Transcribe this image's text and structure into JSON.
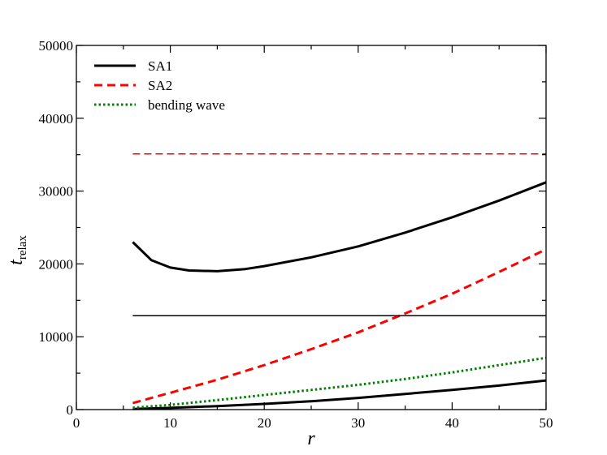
{
  "chart_data": {
    "type": "line",
    "xlabel": "r",
    "ylabel": {
      "main": "t",
      "sub": "relax"
    },
    "xlim": [
      0,
      50
    ],
    "ylim": [
      0,
      50000
    ],
    "x_ticks_major": [
      0,
      10,
      20,
      30,
      40,
      50
    ],
    "x_tick_labels": [
      "0",
      "10",
      "20",
      "30",
      "40",
      "50"
    ],
    "y_ticks_major": [
      0,
      10000,
      20000,
      30000,
      40000,
      50000
    ],
    "y_tick_labels": [
      "0",
      "10000",
      "20000",
      "30000",
      "40000",
      "50000"
    ],
    "grid": false,
    "legend_position": "top-left",
    "legend": [
      {
        "label": "SA1",
        "color": "#000000",
        "dash": "solid"
      },
      {
        "label": "SA2",
        "color": "#ff0000",
        "dash": "dashed"
      },
      {
        "label": "bending wave",
        "color": "#008000",
        "dash": "dotted"
      }
    ],
    "series": [
      {
        "legend_ref": "SA1",
        "color": "#000000",
        "dash": "solid",
        "weight": "thick",
        "x": [
          6,
          8,
          10,
          12,
          15,
          18,
          20,
          25,
          30,
          35,
          40,
          45,
          50
        ],
        "y": [
          23000,
          20500,
          19500,
          19100,
          19000,
          19300,
          19700,
          20900,
          22400,
          24300,
          26400,
          28700,
          31200
        ]
      },
      {
        "legend_ref": "SA1",
        "color": "#000000",
        "dash": "solid",
        "weight": "thick",
        "x": [
          6,
          10,
          15,
          20,
          25,
          30,
          35,
          40,
          45,
          50
        ],
        "y": [
          80,
          230,
          480,
          780,
          1150,
          1600,
          2150,
          2700,
          3300,
          4000
        ]
      },
      {
        "legend_ref": "SA2",
        "color": "#ff0000",
        "dash": "dashed",
        "weight": "thick",
        "x": [
          6,
          10,
          15,
          20,
          25,
          30,
          35,
          40,
          45,
          50
        ],
        "y": [
          900,
          2300,
          4100,
          6100,
          8300,
          10600,
          13200,
          15900,
          18900,
          22000
        ]
      },
      {
        "legend_ref": "bending wave",
        "color": "#008000",
        "dash": "dotted",
        "weight": "thick",
        "x": [
          6,
          10,
          15,
          20,
          25,
          30,
          35,
          40,
          45,
          50
        ],
        "y": [
          250,
          650,
          1300,
          2000,
          2700,
          3400,
          4200,
          5100,
          6100,
          7100
        ]
      },
      {
        "color": "#ff0000",
        "dash": "dashed",
        "weight": "thin",
        "x": [
          6,
          50
        ],
        "y": [
          35100,
          35100
        ]
      },
      {
        "color": "#000000",
        "dash": "solid",
        "weight": "thin",
        "x": [
          6,
          50
        ],
        "y": [
          12900,
          12900
        ]
      }
    ]
  }
}
